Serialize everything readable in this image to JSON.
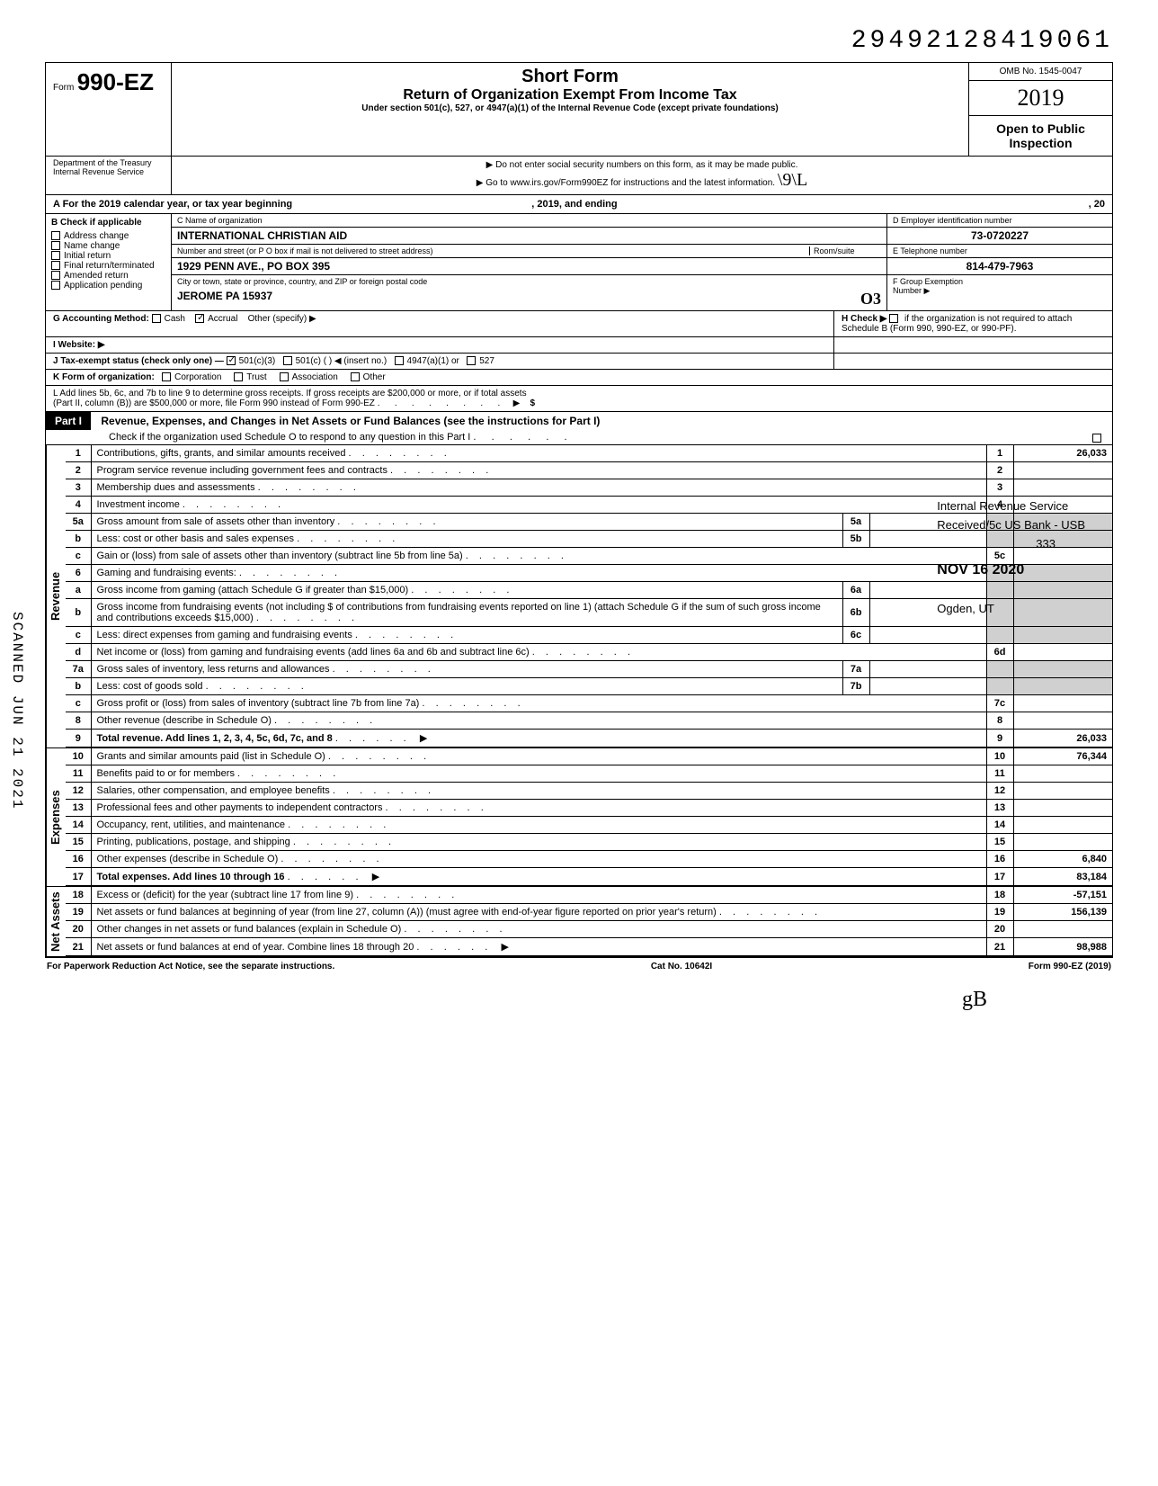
{
  "top_number": "29492128419061",
  "left_scan": "SCANNED JUN 21 2021",
  "header": {
    "form_word": "Form",
    "form_number": "990-EZ",
    "title": "Short Form",
    "subtitle": "Return of Organization Exempt From Income Tax",
    "under": "Under section 501(c), 527, or 4947(a)(1) of the Internal Revenue Code (except private foundations)",
    "no_ssn": "▶ Do not enter social security numbers on this form, as it may be made public.",
    "goto": "▶ Go to www.irs.gov/Form990EZ for instructions and the latest information.",
    "handwritten": "\\9\\L",
    "omb": "OMB No. 1545-0047",
    "year": "2019",
    "open": "Open to Public Inspection",
    "dept1": "Department of the Treasury",
    "dept2": "Internal Revenue Service"
  },
  "line_a": {
    "prefix": "A  For the 2019 calendar year, or tax year beginning",
    "mid": ", 2019, and ending",
    "suffix": ", 20"
  },
  "col_b": {
    "title": "B  Check if applicable",
    "items": [
      "Address change",
      "Name change",
      "Initial return",
      "Final return/terminated",
      "Amended return",
      "Application pending"
    ]
  },
  "col_c": {
    "label_name": "C  Name of organization",
    "name": "INTERNATIONAL CHRISTIAN AID",
    "label_addr": "Number and street (or P O  box if mail is not delivered to street address)",
    "room": "Room/suite",
    "addr": "1929 PENN AVE., PO BOX 395",
    "label_city": "City or town, state or province, country, and ZIP or foreign postal code",
    "city": "JEROME  PA  15937",
    "city_hand": "O3"
  },
  "col_d": {
    "label": "D Employer identification number",
    "value": "73-0720227",
    "e_label": "E Telephone number",
    "e_value": "814-479-7963",
    "f_label": "F Group Exemption",
    "f_label2": "Number ▶"
  },
  "row_g": {
    "g": "G  Accounting Method:",
    "cash": "Cash",
    "accrual": "Accrual",
    "other": "Other (specify) ▶",
    "h": "H  Check ▶",
    "h2": "if the organization is not required to attach Schedule B (Form 990, 990-EZ, or 990-PF)."
  },
  "row_i": {
    "i": "I   Website: ▶"
  },
  "row_j": {
    "j": "J  Tax-exempt status (check only one) —",
    "c3": "501(c)(3)",
    "c": "501(c) (",
    "insert": ") ◀ (insert no.)",
    "a1": "4947(a)(1) or",
    "s527": "527"
  },
  "row_k": {
    "k": "K  Form of organization:",
    "corp": "Corporation",
    "trust": "Trust",
    "assoc": "Association",
    "other": "Other"
  },
  "row_l": {
    "l1": "L  Add lines 5b, 6c, and 7b to line 9 to determine gross receipts. If gross receipts are $200,000 or more, or if total assets",
    "l2": "(Part II, column (B)) are $500,000 or more, file Form 990 instead of Form 990-EZ",
    "arrow": "▶",
    "dollar": "$"
  },
  "part1": {
    "label": "Part I",
    "title": "Revenue, Expenses, and Changes in Net Assets or Fund Balances (see the instructions for Part I)",
    "check": "Check if the organization used Schedule O to respond to any question in this Part I"
  },
  "sections": {
    "revenue": "Revenue",
    "expenses": "Expenses",
    "netassets": "Net Assets"
  },
  "stamp": {
    "l1": "Internal Revenue Service",
    "l2": "Received/5c US Bank - USB",
    "l3": "333",
    "l4": "NOV 16 2020",
    "l5": "Ogden, UT"
  },
  "rows": [
    {
      "n": "1",
      "desc": "Contributions, gifts, grants, and similar amounts received",
      "rn": "1",
      "val": "26,033"
    },
    {
      "n": "2",
      "desc": "Program service revenue including government fees and contracts",
      "rn": "2",
      "val": ""
    },
    {
      "n": "3",
      "desc": "Membership dues and assessments",
      "rn": "3",
      "val": ""
    },
    {
      "n": "4",
      "desc": "Investment income",
      "rn": "4",
      "val": ""
    },
    {
      "n": "5a",
      "desc": "Gross amount from sale of assets other than inventory",
      "mid": "5a",
      "midval": "",
      "rn": "",
      "val": "",
      "shaded": true
    },
    {
      "n": "b",
      "desc": "Less: cost or other basis and sales expenses",
      "mid": "5b",
      "midval": "",
      "rn": "",
      "val": "",
      "shaded": true
    },
    {
      "n": "c",
      "desc": "Gain or (loss) from sale of assets other than inventory (subtract line 5b from line 5a)",
      "rn": "5c",
      "val": ""
    },
    {
      "n": "6",
      "desc": "Gaming and fundraising events:",
      "rn": "",
      "val": "",
      "shaded": true
    },
    {
      "n": "a",
      "desc": "Gross income from gaming (attach Schedule G if greater than $15,000)",
      "mid": "6a",
      "midval": "",
      "rn": "",
      "val": "",
      "shaded": true
    },
    {
      "n": "b",
      "desc": "Gross income from fundraising events (not including  $                      of contributions from fundraising events reported on line 1) (attach Schedule G if the sum of such gross income and contributions exceeds $15,000)",
      "mid": "6b",
      "midval": "",
      "rn": "",
      "val": "",
      "shaded": true
    },
    {
      "n": "c",
      "desc": "Less: direct expenses from gaming and fundraising events",
      "mid": "6c",
      "midval": "",
      "rn": "",
      "val": "",
      "shaded": true
    },
    {
      "n": "d",
      "desc": "Net income or (loss) from gaming and fundraising events (add lines 6a and 6b and subtract line 6c)",
      "rn": "6d",
      "val": ""
    },
    {
      "n": "7a",
      "desc": "Gross sales of inventory, less returns and allowances",
      "mid": "7a",
      "midval": "",
      "rn": "",
      "val": "",
      "shaded": true
    },
    {
      "n": "b",
      "desc": "Less: cost of goods sold",
      "mid": "7b",
      "midval": "",
      "rn": "",
      "val": "",
      "shaded": true
    },
    {
      "n": "c",
      "desc": "Gross profit or (loss) from sales of inventory (subtract line 7b from line 7a)",
      "rn": "7c",
      "val": ""
    },
    {
      "n": "8",
      "desc": "Other revenue (describe in Schedule O)",
      "rn": "8",
      "val": ""
    },
    {
      "n": "9",
      "desc": "Total revenue. Add lines 1, 2, 3, 4, 5c, 6d, 7c, and 8",
      "rn": "9",
      "val": "26,033",
      "bold": true,
      "arrow": true
    }
  ],
  "exp_rows": [
    {
      "n": "10",
      "desc": "Grants and similar amounts paid (list in Schedule O)",
      "rn": "10",
      "val": "76,344"
    },
    {
      "n": "11",
      "desc": "Benefits paid to or for members",
      "rn": "11",
      "val": ""
    },
    {
      "n": "12",
      "desc": "Salaries, other compensation, and employee benefits",
      "rn": "12",
      "val": ""
    },
    {
      "n": "13",
      "desc": "Professional fees and other payments to independent contractors",
      "rn": "13",
      "val": ""
    },
    {
      "n": "14",
      "desc": "Occupancy, rent, utilities, and maintenance",
      "rn": "14",
      "val": ""
    },
    {
      "n": "15",
      "desc": "Printing, publications, postage, and shipping",
      "rn": "15",
      "val": ""
    },
    {
      "n": "16",
      "desc": "Other expenses (describe in Schedule O)",
      "rn": "16",
      "val": "6,840"
    },
    {
      "n": "17",
      "desc": "Total expenses. Add lines 10 through 16",
      "rn": "17",
      "val": "83,184",
      "bold": true,
      "arrow": true
    }
  ],
  "na_rows": [
    {
      "n": "18",
      "desc": "Excess or (deficit) for the year (subtract line 17 from line 9)",
      "rn": "18",
      "val": "-57,151"
    },
    {
      "n": "19",
      "desc": "Net assets or fund balances at beginning of year (from line 27, column (A)) (must agree with end-of-year figure reported on prior year's return)",
      "rn": "19",
      "val": "156,139"
    },
    {
      "n": "20",
      "desc": "Other changes in net assets or fund balances (explain in Schedule O)",
      "rn": "20",
      "val": ""
    },
    {
      "n": "21",
      "desc": "Net assets or fund balances at end of year. Combine lines 18 through 20",
      "rn": "21",
      "val": "98,988",
      "arrow": true
    }
  ],
  "footer": {
    "left": "For Paperwork Reduction Act Notice, see the separate instructions.",
    "mid": "Cat  No. 10642I",
    "right": "Form 990-EZ (2019)"
  },
  "bottom_hand": "gB"
}
